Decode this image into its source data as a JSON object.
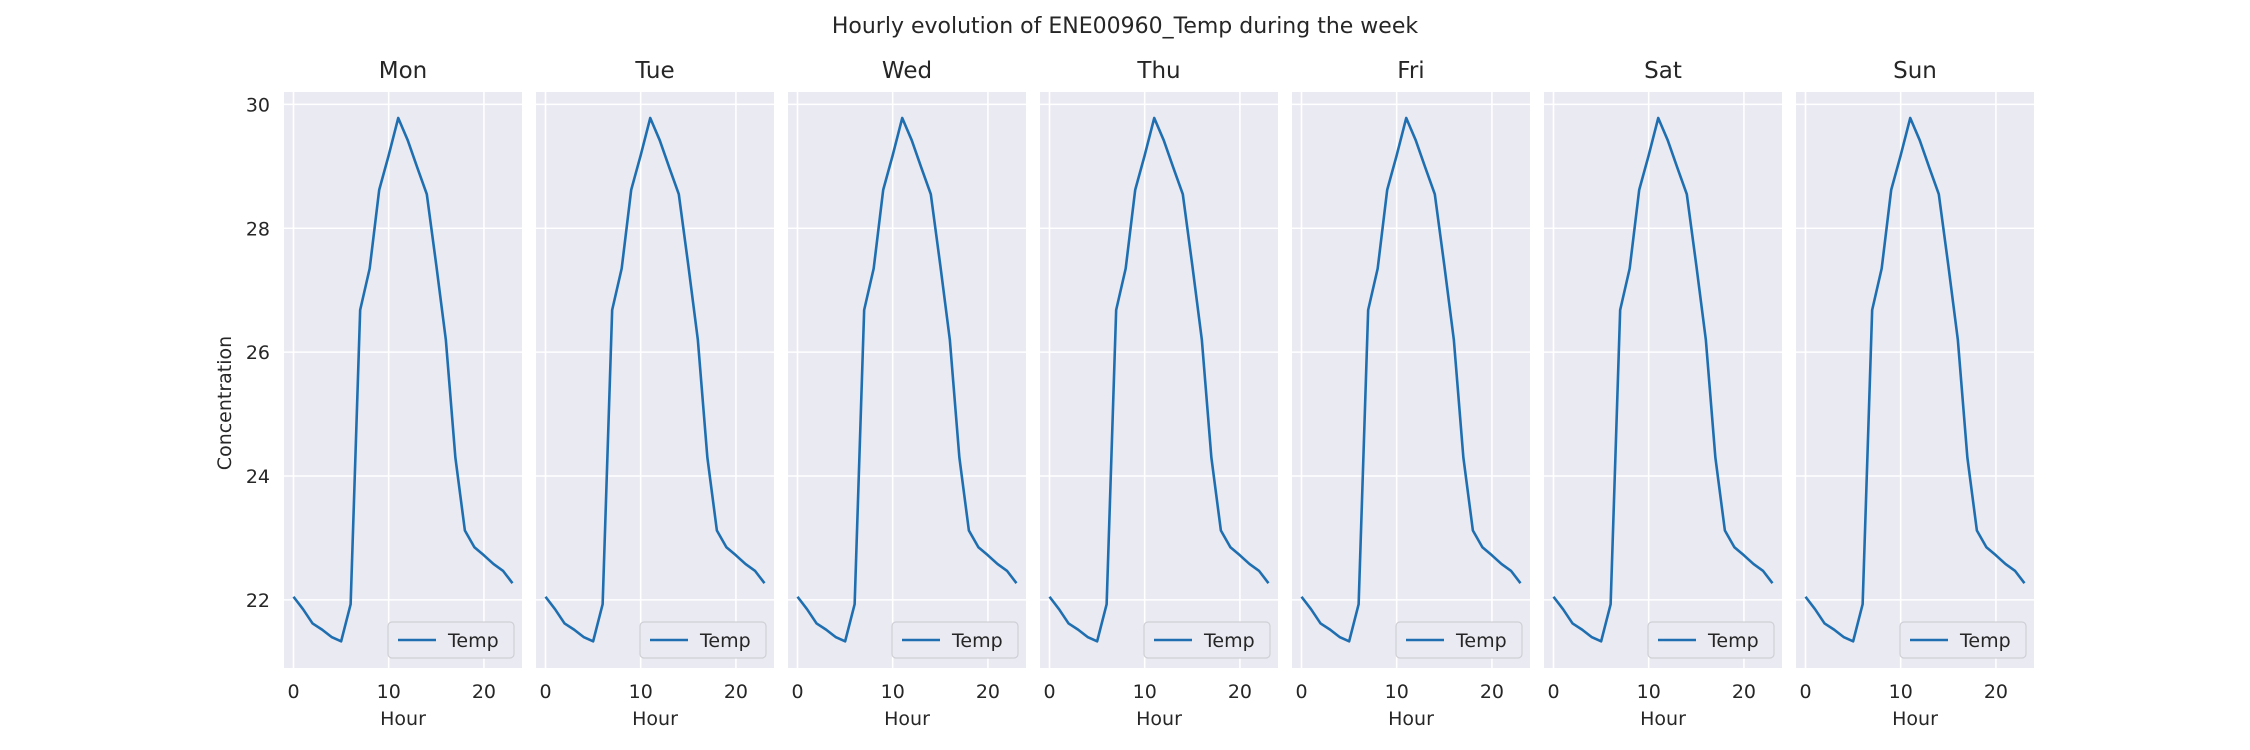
{
  "chart_data": {
    "type": "line",
    "title": "Hourly evolution of ENE00960_Temp during the week",
    "xlabel": "Hour",
    "ylabel": "Concentration",
    "xlim": [
      -1,
      24
    ],
    "ylim": [
      20.9,
      30.2
    ],
    "xticks": [
      0,
      10,
      20
    ],
    "yticks": [
      22,
      24,
      26,
      28,
      30
    ],
    "grid": true,
    "legend_position": "lower-right",
    "line_color": "#1f6fb0",
    "panel_bg": "#eaeaf2",
    "grid_color": "#ffffff",
    "panels": [
      {
        "label": "Mon"
      },
      {
        "label": "Tue"
      },
      {
        "label": "Wed"
      },
      {
        "label": "Thu"
      },
      {
        "label": "Fri"
      },
      {
        "label": "Sat"
      },
      {
        "label": "Sun"
      }
    ],
    "series": [
      {
        "name": "Temp",
        "x": [
          0,
          1,
          2,
          3,
          4,
          5,
          6,
          7,
          8,
          9,
          10,
          11,
          12,
          13,
          14,
          15,
          16,
          17,
          18,
          19,
          20,
          21,
          22,
          23
        ],
        "values": [
          22.05,
          21.85,
          21.62,
          21.52,
          21.4,
          21.33,
          21.93,
          26.68,
          27.35,
          28.62,
          29.18,
          29.78,
          29.42,
          28.98,
          28.55,
          27.4,
          26.2,
          24.3,
          23.12,
          22.85,
          22.72,
          22.58,
          22.47,
          22.27
        ]
      }
    ]
  }
}
